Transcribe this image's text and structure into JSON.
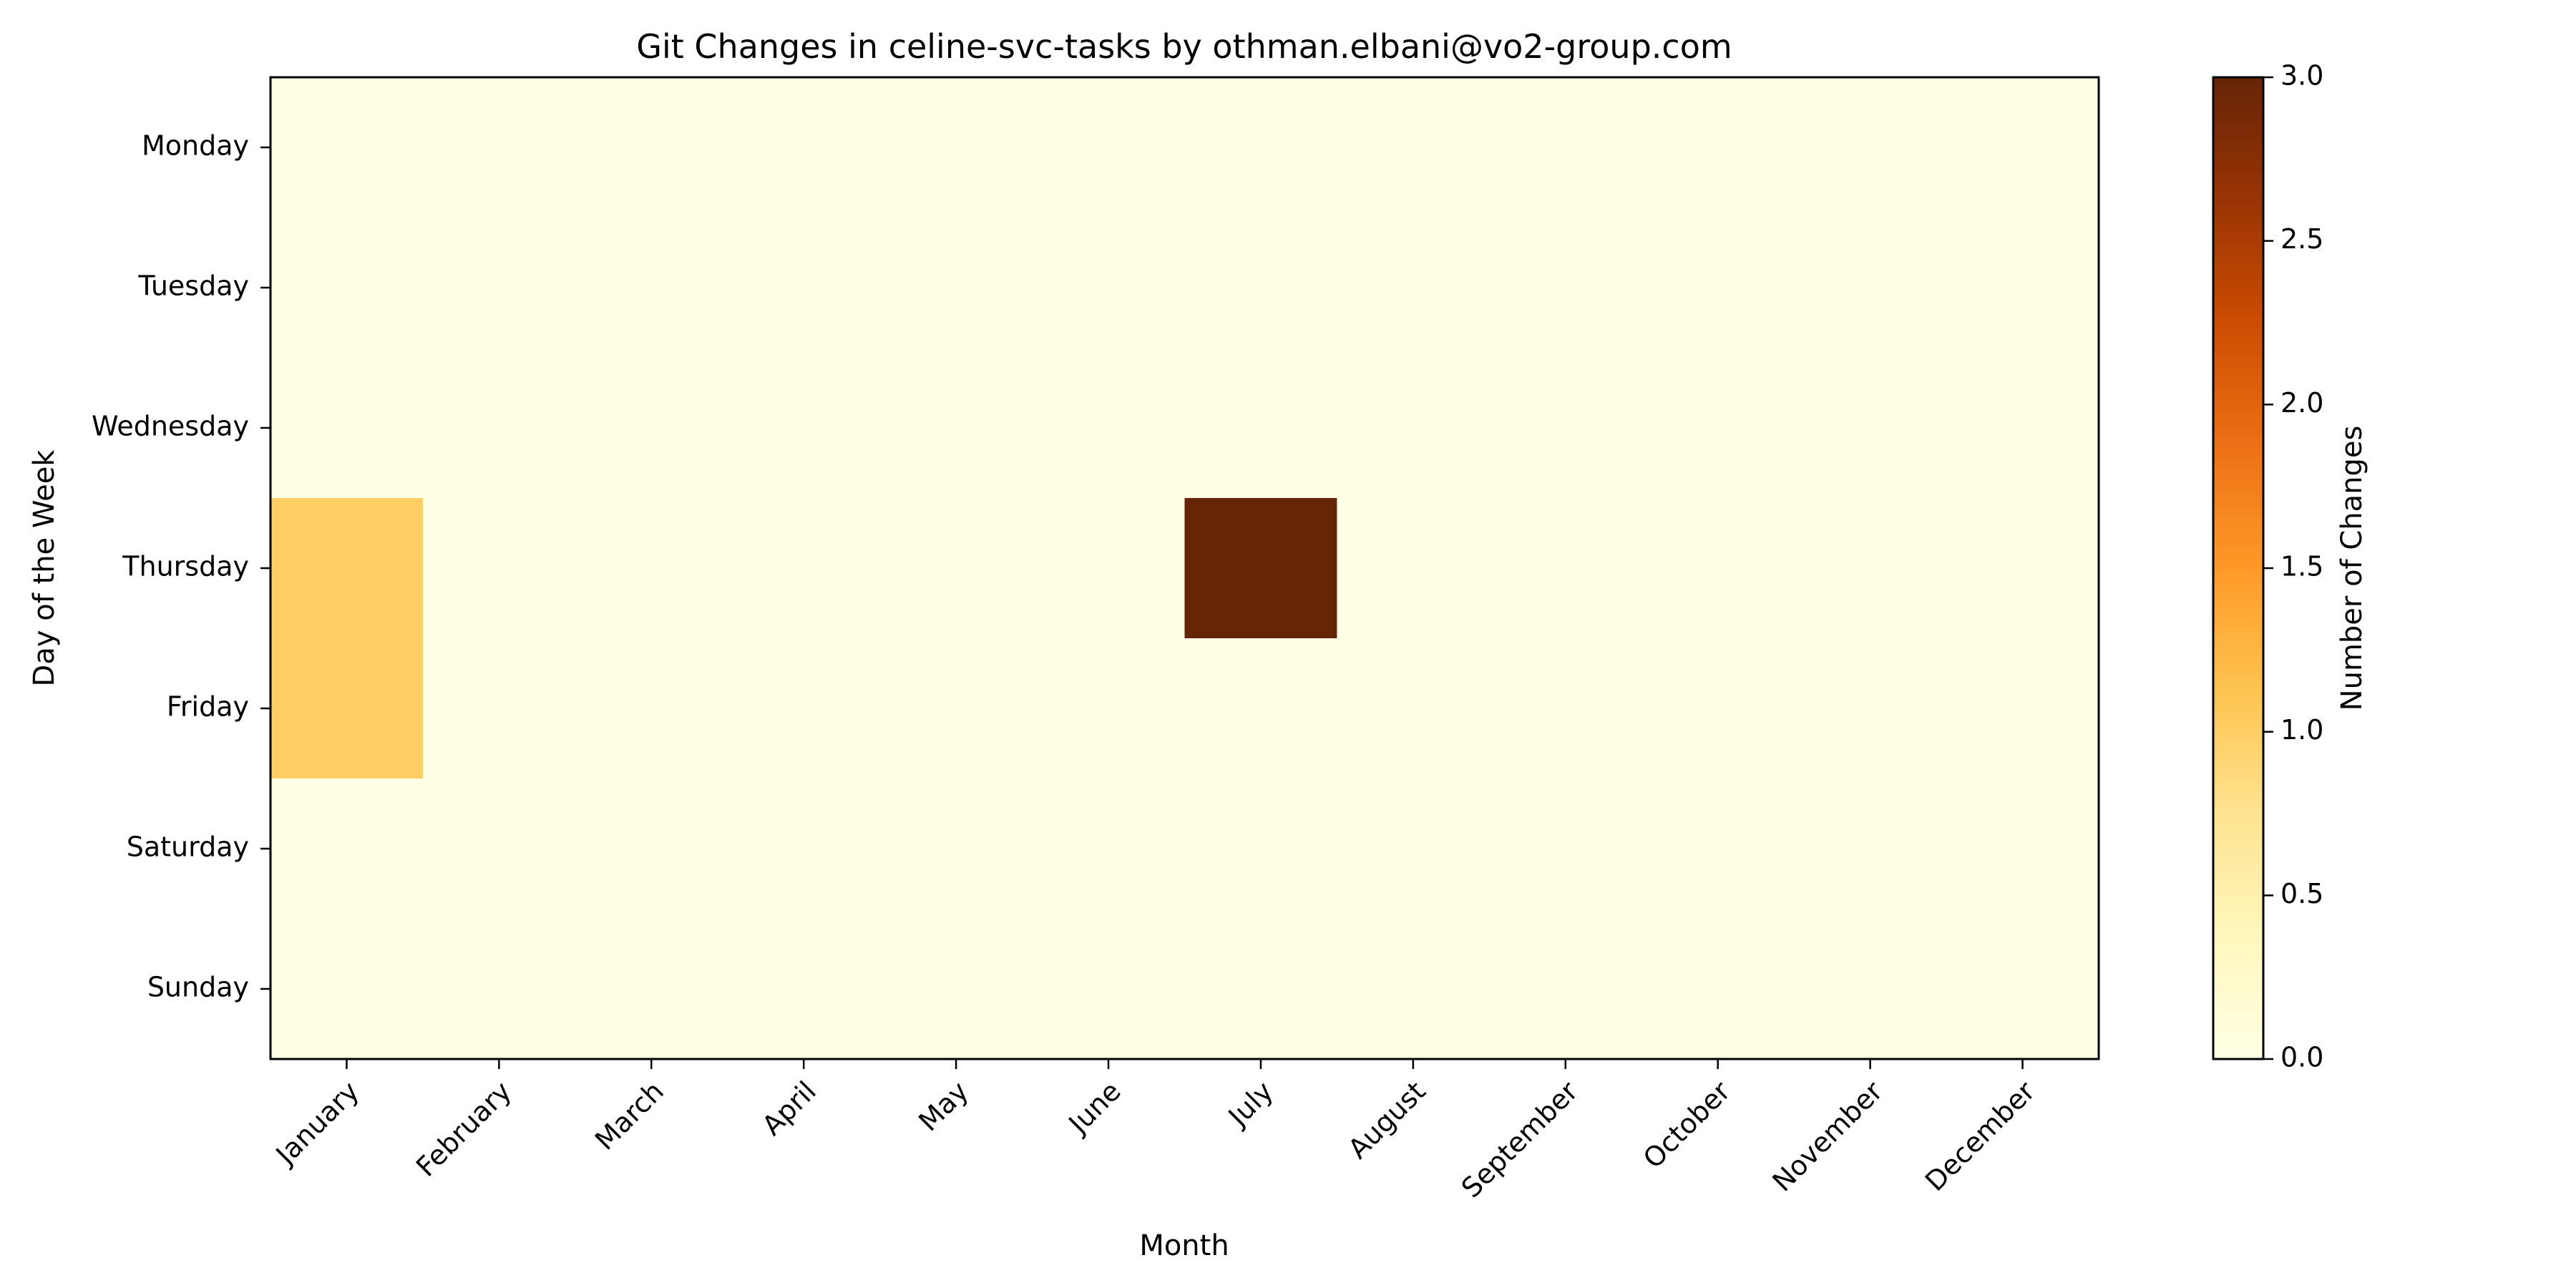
{
  "chart_data": {
    "type": "heatmap",
    "title": "Git Changes in celine-svc-tasks by othman.elbani@vo2-group.com",
    "xlabel": "Month",
    "ylabel": "Day of the Week",
    "x_categories": [
      "January",
      "February",
      "March",
      "April",
      "May",
      "June",
      "July",
      "August",
      "September",
      "October",
      "November",
      "December"
    ],
    "y_categories": [
      "Monday",
      "Tuesday",
      "Wednesday",
      "Thursday",
      "Friday",
      "Saturday",
      "Sunday"
    ],
    "values": [
      [
        0,
        0,
        0,
        0,
        0,
        0,
        0,
        0,
        0,
        0,
        0,
        0
      ],
      [
        0,
        0,
        0,
        0,
        0,
        0,
        0,
        0,
        0,
        0,
        0,
        0
      ],
      [
        0,
        0,
        0,
        0,
        0,
        0,
        0,
        0,
        0,
        0,
        0,
        0
      ],
      [
        1,
        0,
        0,
        0,
        0,
        0,
        3,
        0,
        0,
        0,
        0,
        0
      ],
      [
        1,
        0,
        0,
        0,
        0,
        0,
        0,
        0,
        0,
        0,
        0,
        0
      ],
      [
        0,
        0,
        0,
        0,
        0,
        0,
        0,
        0,
        0,
        0,
        0,
        0
      ],
      [
        0,
        0,
        0,
        0,
        0,
        0,
        0,
        0,
        0,
        0,
        0,
        0
      ]
    ],
    "colorbar": {
      "label": "Number of Changes",
      "range": [
        0,
        3
      ],
      "ticks": [
        "0.0",
        "0.5",
        "1.0",
        "1.5",
        "2.0",
        "2.5",
        "3.0"
      ]
    },
    "colormap": "YlOrBr",
    "x_tick_rotation": "45 degrees",
    "grid": false
  }
}
